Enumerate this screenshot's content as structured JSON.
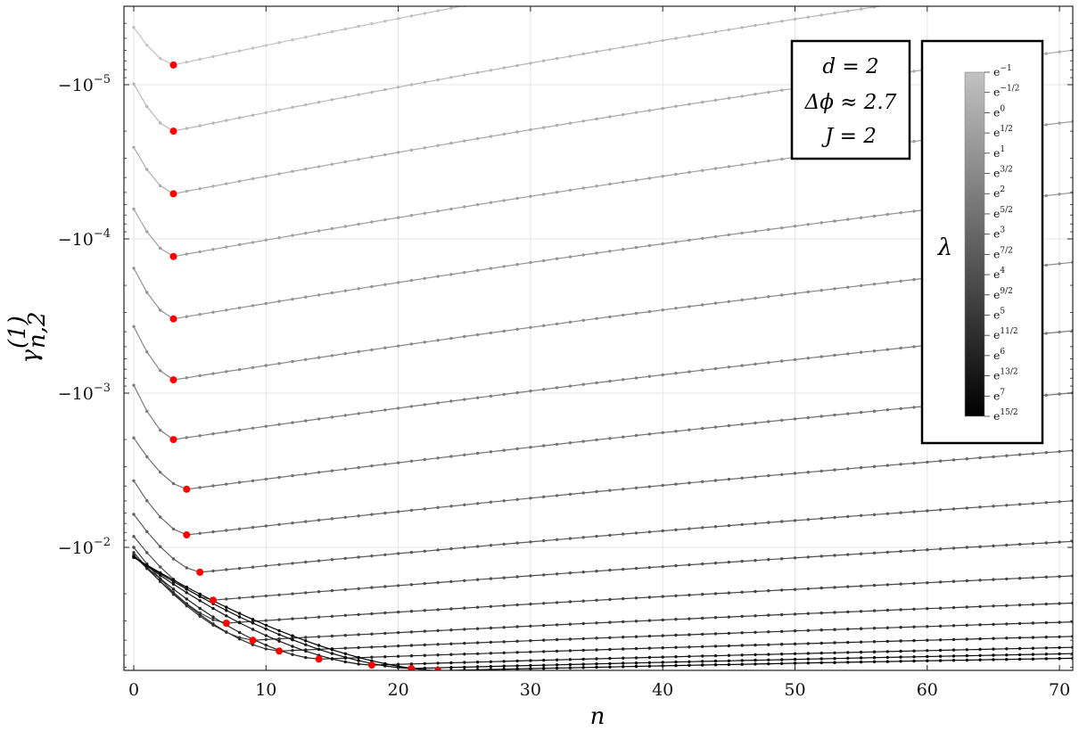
{
  "chart_data": {
    "type": "line",
    "xlabel": "n",
    "ylabel": "γ",
    "ylabel_superscript": "(1)",
    "ylabel_subscript": "n,2",
    "xlim": [
      -1,
      70.7
    ],
    "x_ticks": [
      0,
      10,
      20,
      30,
      40,
      50,
      60,
      70
    ],
    "x_tick_labels": [
      "0",
      "10",
      "20",
      "30",
      "40",
      "50",
      "60",
      "70"
    ],
    "y_scale": "log (negative)",
    "y_ticks": [
      -1e-05,
      -0.0001,
      -0.001,
      -0.01
    ],
    "y_tick_labels": [
      "−10−5",
      "−10−4",
      "−10−3",
      "−10−2"
    ],
    "y_tick_base": "−10",
    "y_tick_exps": [
      "−5",
      "−4",
      "−3",
      "−2"
    ],
    "grid": true,
    "annotation": [
      "d = 2",
      "Δϕ ≈ 2.7",
      "J = 2"
    ],
    "colorbar": {
      "label": "λ",
      "base": "e",
      "exps": [
        "−1",
        "−1/2",
        "0",
        "1/2",
        "1",
        "3/2",
        "2",
        "5/2",
        "3",
        "7/2",
        "4",
        "9/2",
        "5",
        "11/2",
        "6",
        "13/2",
        "7",
        "15/2"
      ],
      "color_low": "#c2c2c2",
      "color_high": "#000000"
    },
    "minima_color": "#ff0000",
    "series": [
      {
        "lambda_exp": -1,
        "y0": -4.25e-06,
        "n_min": 3,
        "y_min": -7.45e-06,
        "slope": 0.0185
      },
      {
        "lambda_exp": -0.5,
        "y0": -9.9e-06,
        "n_min": 3,
        "y_min": -2e-05,
        "slope": 0.0175
      },
      {
        "lambda_exp": 0,
        "y0": -2.55e-05,
        "n_min": 3,
        "y_min": -5.1e-05,
        "slope": 0.0165
      },
      {
        "lambda_exp": 0.5,
        "y0": -6.4e-05,
        "n_min": 3,
        "y_min": -0.00013,
        "slope": 0.0155
      },
      {
        "lambda_exp": 1,
        "y0": -0.000155,
        "n_min": 3,
        "y_min": -0.00033,
        "slope": 0.0145
      },
      {
        "lambda_exp": 1.5,
        "y0": -0.00037,
        "n_min": 3,
        "y_min": -0.00082,
        "slope": 0.0135
      },
      {
        "lambda_exp": 2,
        "y0": -0.00089,
        "n_min": 3,
        "y_min": -0.002,
        "slope": 0.0125
      },
      {
        "lambda_exp": 2.5,
        "y0": -0.00195,
        "n_min": 4,
        "y_min": -0.0042,
        "slope": 0.0112
      },
      {
        "lambda_exp": 3,
        "y0": -0.0037,
        "n_min": 4,
        "y_min": -0.0083,
        "slope": 0.0098
      },
      {
        "lambda_exp": 3.5,
        "y0": -0.0061,
        "n_min": 5,
        "y_min": -0.0145,
        "slope": 0.0084
      },
      {
        "lambda_exp": 4,
        "y0": -0.0085,
        "n_min": 6,
        "y_min": -0.022,
        "slope": 0.007
      },
      {
        "lambda_exp": 4.5,
        "y0": -0.01,
        "n_min": 7,
        "y_min": -0.031,
        "slope": 0.0057
      },
      {
        "lambda_exp": 5,
        "y0": -0.0108,
        "n_min": 9,
        "y_min": -0.04,
        "slope": 0.0046
      },
      {
        "lambda_exp": 5.5,
        "y0": -0.0112,
        "n_min": 11,
        "y_min": -0.047,
        "slope": 0.0037
      },
      {
        "lambda_exp": 6,
        "y0": -0.0114,
        "n_min": 14,
        "y_min": -0.053,
        "slope": 0.003
      },
      {
        "lambda_exp": 6.5,
        "y0": -0.0115,
        "n_min": 18,
        "y_min": -0.058,
        "slope": 0.0025
      },
      {
        "lambda_exp": 7,
        "y0": -0.0116,
        "n_min": 21,
        "y_min": -0.061,
        "slope": 0.0022
      },
      {
        "lambda_exp": 7.5,
        "y0": -0.0116,
        "n_min": 23,
        "y_min": -0.063,
        "slope": 0.0019
      }
    ]
  }
}
